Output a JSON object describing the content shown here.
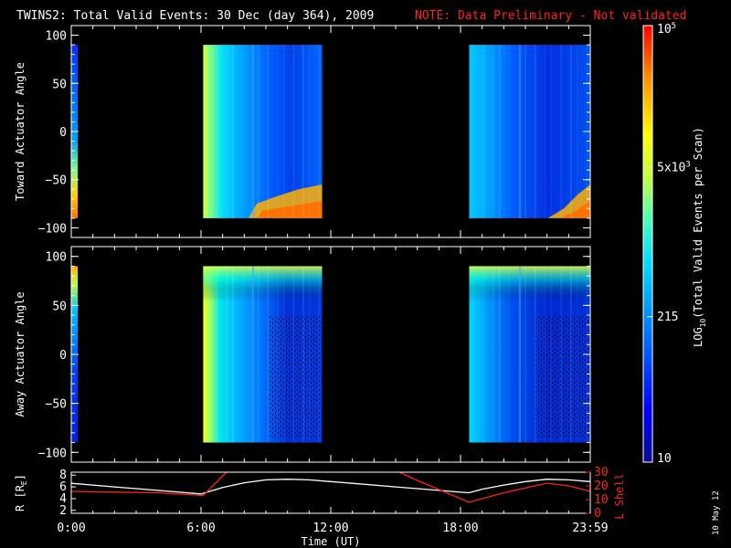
{
  "title": {
    "main": "TWINS2: Total Valid Events: 30 Dec (day 364), 2009",
    "note": "NOTE: Data Preliminary - Not validated"
  },
  "date_stamp": "10 May 12",
  "chart_data": [
    {
      "type": "heatmap",
      "panel": "toward",
      "ylabel": "Toward Actuator Angle",
      "ylim": [
        -110,
        110
      ],
      "yticks": [
        "100",
        "50",
        "0",
        "−50",
        "−100"
      ],
      "ytick_values": [
        100,
        50,
        0,
        -50,
        -100
      ],
      "data_blocks": [
        {
          "t_start": 0.0,
          "t_end": 0.3,
          "angle_min": -90,
          "angle_max": 90
        },
        {
          "t_start": 6.1,
          "t_end": 11.6,
          "angle_min": -90,
          "angle_max": 90
        },
        {
          "t_start": 18.4,
          "t_end": 24.0,
          "angle_min": -90,
          "angle_max": 90
        }
      ]
    },
    {
      "type": "heatmap",
      "panel": "away",
      "ylabel": "Away Actuator Angle",
      "ylim": [
        -110,
        110
      ],
      "yticks": [
        "100",
        "50",
        "0",
        "−50",
        "−100"
      ],
      "ytick_values": [
        100,
        50,
        0,
        -50,
        -100
      ],
      "data_blocks": [
        {
          "t_start": 0.0,
          "t_end": 0.3,
          "angle_min": -90,
          "angle_max": 90
        },
        {
          "t_start": 6.1,
          "t_end": 11.6,
          "angle_min": -90,
          "angle_max": 90
        },
        {
          "t_start": 18.4,
          "t_end": 24.0,
          "angle_min": -90,
          "angle_max": 90
        }
      ]
    },
    {
      "type": "line",
      "panel": "ephemeris",
      "xlabel": "Time (UT)",
      "xlim": [
        0,
        24
      ],
      "xticks": [
        "0:00",
        "6:00",
        "12:00",
        "18:00",
        "23:59"
      ],
      "xtick_values": [
        0,
        6,
        12,
        18,
        24
      ],
      "left_axis": {
        "label_main": "R [R",
        "label_sub": "E",
        "label_end": "]",
        "ylim": [
          1.5,
          8.5
        ],
        "ticks": [
          "8",
          "6",
          "4",
          "2"
        ],
        "tick_values": [
          8,
          6,
          4,
          2
        ],
        "color": "#ffffff"
      },
      "right_axis": {
        "label": "L Shell",
        "ylim": [
          0,
          30
        ],
        "ticks": [
          "30",
          "20",
          "10",
          "0"
        ],
        "tick_values": [
          30,
          20,
          10,
          0
        ],
        "color": "#ff2020"
      },
      "series": [
        {
          "axis": "left",
          "color": "#ffffff",
          "x": [
            0,
            1,
            2,
            3,
            4,
            5,
            6,
            6.1,
            7,
            8,
            9,
            10,
            11,
            12,
            13,
            14,
            15,
            16,
            17,
            18,
            18.4,
            19,
            20,
            21,
            22,
            23,
            24
          ],
          "y": [
            6.6,
            6.3,
            6.0,
            5.7,
            5.4,
            5.1,
            4.8,
            4.9,
            5.9,
            6.7,
            7.2,
            7.3,
            7.2,
            6.9,
            6.6,
            6.3,
            6.0,
            5.7,
            5.4,
            5.1,
            5.0,
            5.6,
            6.3,
            6.9,
            7.3,
            7.2,
            6.9
          ]
        },
        {
          "axis": "right",
          "color": "#ff2020",
          "x": [
            0,
            2,
            4,
            6.1,
            7.3,
            14.9,
            16,
            18.4,
            20,
            22,
            23,
            24
          ],
          "y": [
            16,
            15.5,
            15,
            13,
            32,
            32,
            24,
            8,
            15,
            22,
            20,
            16
          ]
        }
      ]
    }
  ],
  "colorbar": {
    "label_main": "LOG",
    "label_sub": "10",
    "label_rest": "(Total Valid Events per Scan)",
    "ticks": [
      {
        "value": 100000,
        "base": "10",
        "exp": "5"
      },
      {
        "value": 5000,
        "base": "5x10",
        "exp": "3"
      },
      {
        "value": 215,
        "base": "215",
        "exp": ""
      },
      {
        "value": 10,
        "base": "10",
        "exp": ""
      }
    ],
    "range": [
      10,
      100000
    ],
    "colors": [
      "#0b0b8f",
      "#0000ff",
      "#0078ff",
      "#00d8ff",
      "#40ffc0",
      "#c0ff40",
      "#ffff00",
      "#ff9000",
      "#ff0000"
    ]
  }
}
